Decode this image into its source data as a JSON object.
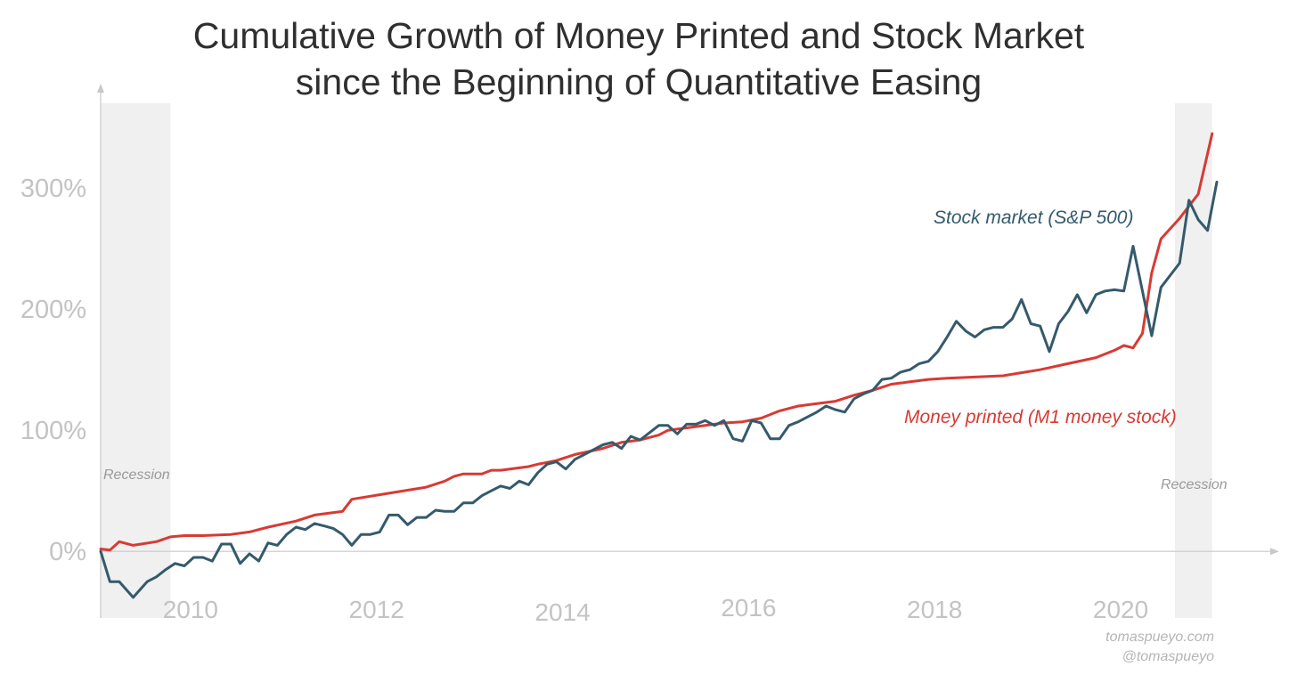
{
  "chart_data": {
    "type": "line",
    "title_lines": [
      "Cumulative Growth of Money Printed and Stock Market",
      "since the Beginning of Quantitative Easing"
    ],
    "xlabel": "",
    "ylabel": "",
    "xlim": [
      2008.9,
      2020.9
    ],
    "ylim": [
      -55,
      370
    ],
    "y_ticks": [
      {
        "value": 0,
        "label": "0%"
      },
      {
        "value": 100,
        "label": "100%"
      },
      {
        "value": 200,
        "label": "200%"
      },
      {
        "value": 300,
        "label": "300%"
      }
    ],
    "x_ticks": [
      {
        "value": 2010,
        "label": "2010"
      },
      {
        "value": 2012,
        "label": "2012"
      },
      {
        "value": 2014,
        "label": "2014"
      },
      {
        "value": 2016,
        "label": "2016"
      },
      {
        "value": 2018,
        "label": "2018"
      },
      {
        "value": 2020,
        "label": "2020"
      }
    ],
    "grid": false,
    "recessions": [
      {
        "start": 2008.9,
        "end": 2009.65,
        "label": "Recession"
      },
      {
        "start": 2020.45,
        "end": 2020.85,
        "label": "Recession"
      }
    ],
    "series": [
      {
        "name": "Stock market (S&P 500)",
        "color": "#345a6c",
        "x": [
          2008.9,
          2009.0,
          2009.1,
          2009.25,
          2009.4,
          2009.5,
          2009.6,
          2009.7,
          2009.8,
          2009.9,
          2010.0,
          2010.1,
          2010.2,
          2010.3,
          2010.4,
          2010.5,
          2010.6,
          2010.7,
          2010.8,
          2010.9,
          2011.0,
          2011.1,
          2011.2,
          2011.3,
          2011.4,
          2011.5,
          2011.6,
          2011.7,
          2011.8,
          2011.9,
          2012.0,
          2012.1,
          2012.2,
          2012.3,
          2012.4,
          2012.5,
          2012.6,
          2012.7,
          2012.8,
          2012.9,
          2013.0,
          2013.1,
          2013.2,
          2013.3,
          2013.4,
          2013.5,
          2013.6,
          2013.7,
          2013.8,
          2013.9,
          2014.0,
          2014.1,
          2014.2,
          2014.3,
          2014.4,
          2014.5,
          2014.6,
          2014.7,
          2014.8,
          2014.9,
          2015.0,
          2015.1,
          2015.2,
          2015.3,
          2015.4,
          2015.5,
          2015.6,
          2015.7,
          2015.8,
          2015.9,
          2016.0,
          2016.1,
          2016.2,
          2016.3,
          2016.4,
          2016.5,
          2016.6,
          2016.7,
          2016.8,
          2016.9,
          2017.0,
          2017.1,
          2017.2,
          2017.3,
          2017.4,
          2017.5,
          2017.6,
          2017.7,
          2017.8,
          2017.9,
          2018.0,
          2018.1,
          2018.2,
          2018.3,
          2018.4,
          2018.5,
          2018.6,
          2018.7,
          2018.8,
          2018.9,
          2019.0,
          2019.1,
          2019.2,
          2019.3,
          2019.4,
          2019.5,
          2019.6,
          2019.7,
          2019.8,
          2019.9,
          2020.0,
          2020.1,
          2020.2,
          2020.3,
          2020.4,
          2020.5,
          2020.6,
          2020.7,
          2020.8,
          2020.9
        ],
        "values": [
          0,
          -25,
          -25,
          -38,
          -25,
          -21,
          -15,
          -10,
          -12,
          -5,
          -5,
          -8,
          6,
          6,
          -10,
          -2,
          -8,
          7,
          5,
          14,
          20,
          18,
          23,
          21,
          19,
          14,
          5,
          14,
          14,
          16,
          30,
          30,
          22,
          28,
          28,
          34,
          33,
          33,
          40,
          40,
          46,
          50,
          54,
          52,
          58,
          55,
          65,
          72,
          74,
          68,
          76,
          80,
          84,
          88,
          90,
          85,
          95,
          92,
          98,
          104,
          104,
          97,
          105,
          105,
          108,
          104,
          108,
          93,
          91,
          108,
          106,
          93,
          93,
          104,
          107,
          111,
          115,
          120,
          117,
          115,
          126,
          130,
          133,
          142,
          143,
          148,
          150,
          155,
          157,
          165,
          177,
          190,
          182,
          177,
          183,
          185,
          185,
          192,
          208,
          188,
          186,
          165,
          188,
          198,
          212,
          197,
          212,
          215,
          216,
          215,
          252,
          215,
          178,
          218,
          228,
          238,
          290,
          274,
          265,
          305
        ]
      },
      {
        "name": "Money printed (M1 money stock)",
        "color": "#d83a34",
        "x": [
          2008.9,
          2009.0,
          2009.1,
          2009.25,
          2009.5,
          2009.65,
          2009.8,
          2010.0,
          2010.3,
          2010.5,
          2010.7,
          2011.0,
          2011.2,
          2011.5,
          2011.6,
          2012.0,
          2012.4,
          2012.6,
          2012.7,
          2012.8,
          2013.0,
          2013.1,
          2013.2,
          2013.5,
          2013.6,
          2013.8,
          2014.0,
          2014.3,
          2014.5,
          2014.7,
          2014.9,
          2015.0,
          2015.2,
          2015.4,
          2015.6,
          2015.8,
          2016.0,
          2016.2,
          2016.4,
          2016.6,
          2016.8,
          2017.0,
          2017.2,
          2017.4,
          2017.6,
          2017.8,
          2018.0,
          2018.3,
          2018.6,
          2019.0,
          2019.3,
          2019.6,
          2019.8,
          2019.9,
          2020.0,
          2020.1,
          2020.2,
          2020.3,
          2020.5,
          2020.7,
          2020.85
        ],
        "values": [
          2,
          1,
          8,
          5,
          8,
          12,
          13,
          13,
          14,
          16,
          20,
          25,
          30,
          33,
          43,
          48,
          53,
          58,
          62,
          64,
          64,
          67,
          67,
          70,
          72,
          75,
          80,
          85,
          90,
          92,
          96,
          100,
          102,
          104,
          106,
          107,
          110,
          116,
          120,
          122,
          124,
          129,
          133,
          138,
          140,
          142,
          143,
          144,
          145,
          150,
          155,
          160,
          166,
          170,
          168,
          180,
          230,
          258,
          275,
          295,
          345
        ]
      }
    ],
    "credits": [
      "tomaspueyo.com",
      "@tomaspueyo"
    ]
  }
}
